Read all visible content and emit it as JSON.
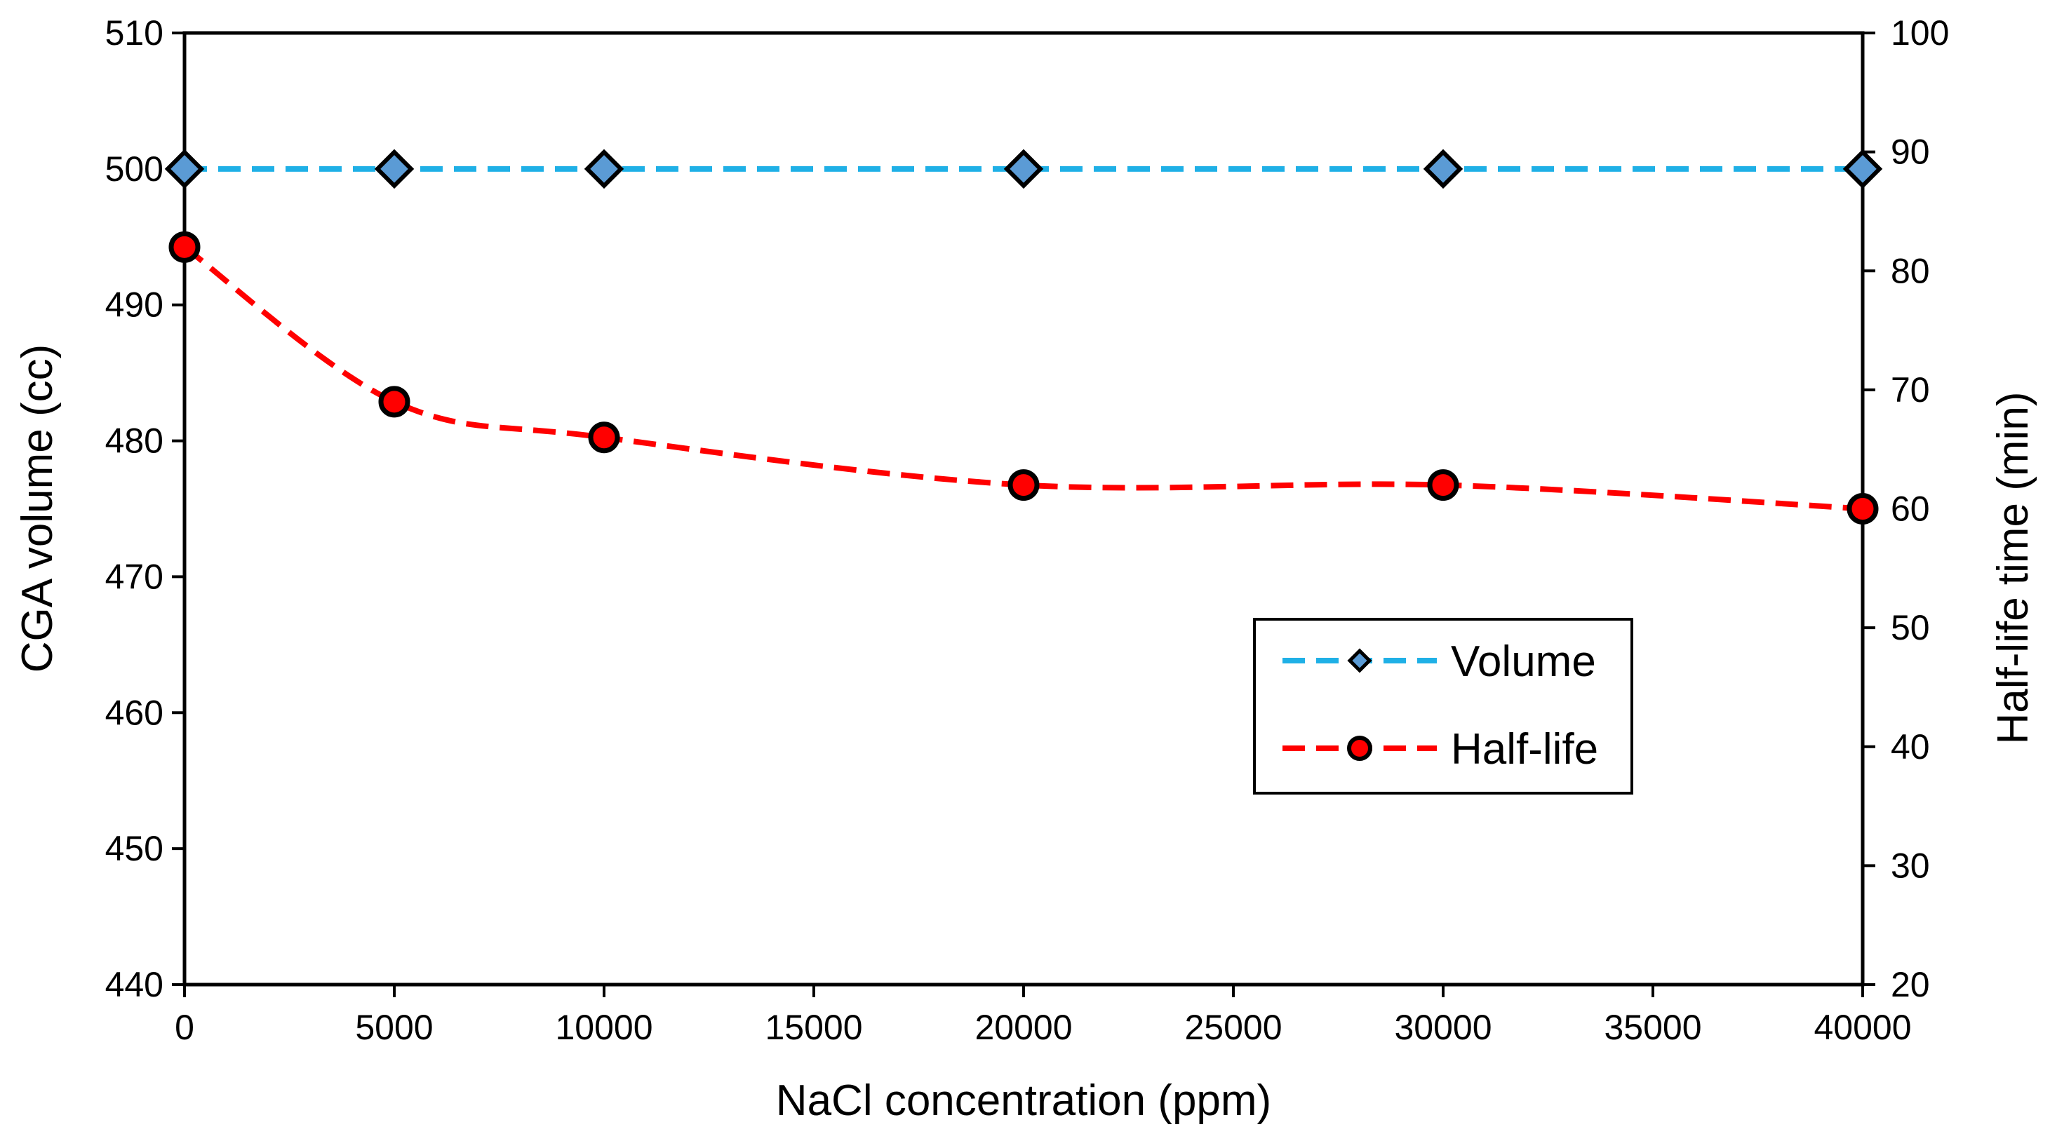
{
  "chart_data": {
    "type": "line",
    "title": "",
    "xlabel": "NaCl concentration (ppm)",
    "ylabel": "CGA volume (cc)",
    "y2label": "Half-life time (min)",
    "xlim": [
      0,
      40000
    ],
    "ylim": [
      440,
      510
    ],
    "y2lim": [
      20,
      100
    ],
    "x_ticks": [
      0,
      5000,
      10000,
      15000,
      20000,
      25000,
      30000,
      35000,
      40000
    ],
    "y_ticks": [
      440,
      450,
      460,
      470,
      480,
      490,
      500,
      510
    ],
    "y2_ticks": [
      20,
      30,
      40,
      50,
      60,
      70,
      80,
      90,
      100
    ],
    "grid": false,
    "legend_position": "lower-right",
    "series": [
      {
        "name": "Volume",
        "axis": "left",
        "x": [
          0,
          5000,
          10000,
          20000,
          30000,
          40000
        ],
        "values": [
          500,
          500,
          500,
          500,
          500,
          500
        ],
        "marker": "diamond",
        "line_color": "#1FB0E6",
        "marker_color": "#5B9BD5",
        "line_style": "dashed",
        "smooth": false
      },
      {
        "name": "Half-life",
        "axis": "right",
        "x": [
          0,
          5000,
          10000,
          20000,
          30000,
          40000
        ],
        "values": [
          82,
          69,
          66,
          62,
          62,
          60
        ],
        "marker": "circle",
        "line_color": "#FF0000",
        "marker_color": "#FF0000",
        "line_style": "dashed",
        "smooth": true
      }
    ]
  }
}
